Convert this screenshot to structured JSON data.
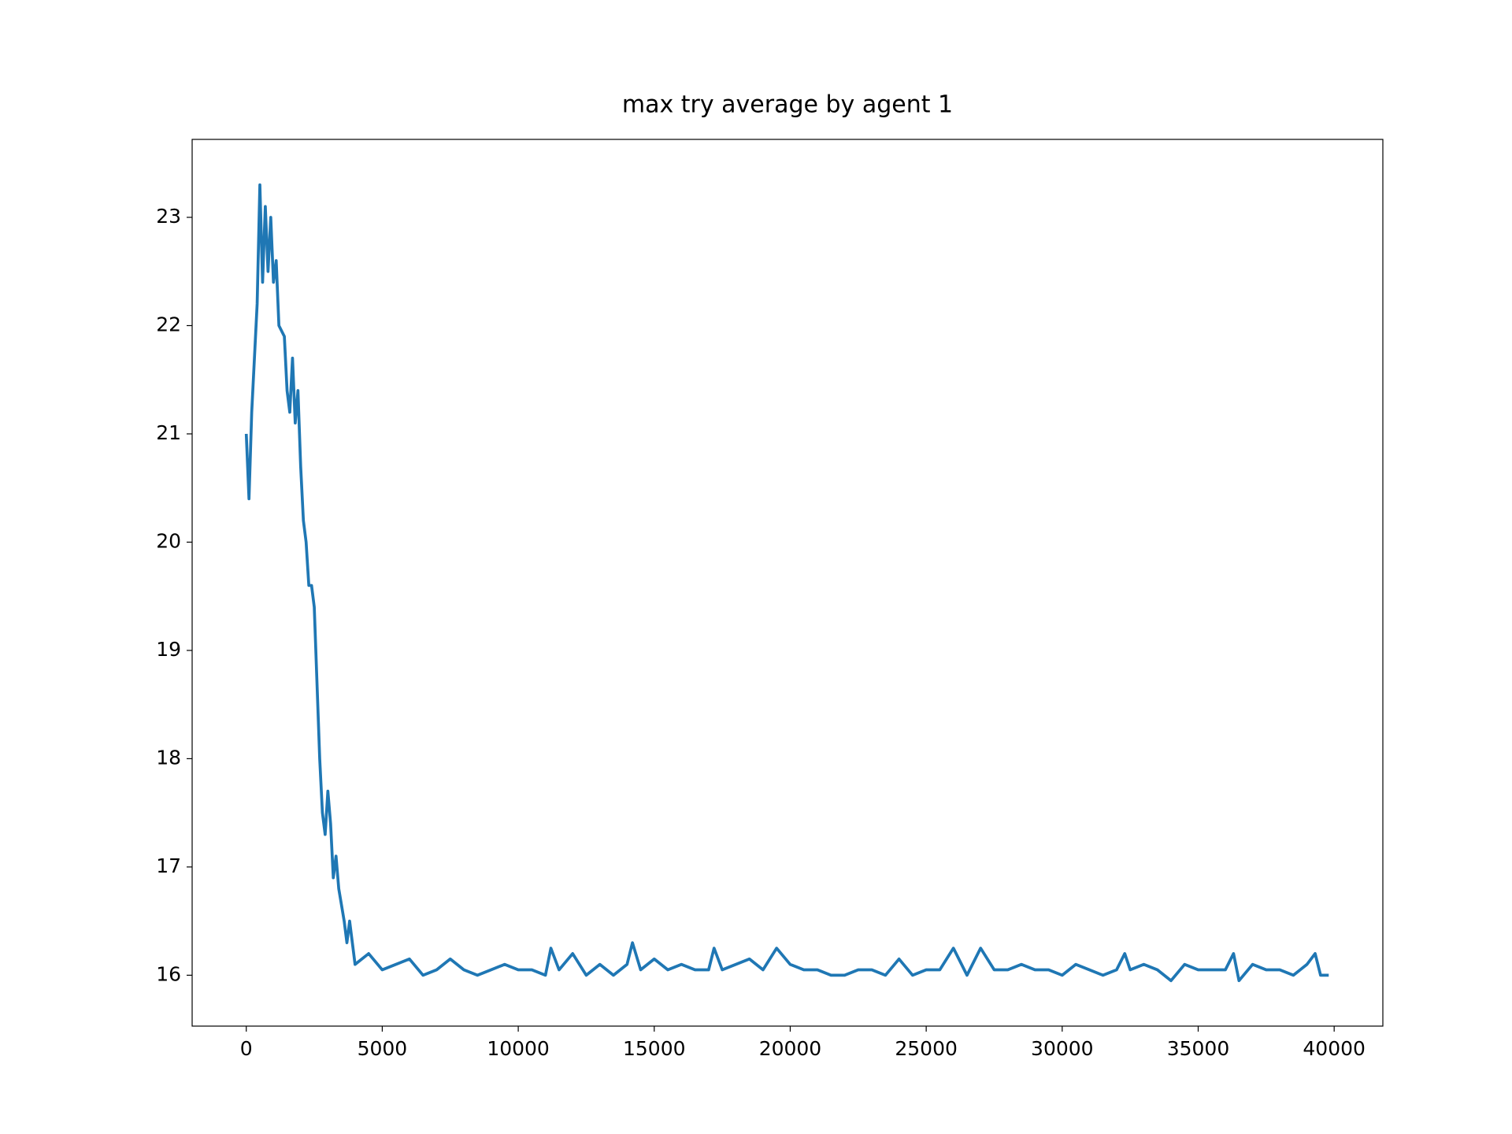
{
  "chart_data": {
    "type": "line",
    "title": "max try average by agent 1",
    "x": [
      0,
      100,
      200,
      300,
      400,
      500,
      600,
      700,
      800,
      900,
      1000,
      1100,
      1200,
      1400,
      1500,
      1600,
      1700,
      1800,
      1900,
      2000,
      2100,
      2200,
      2300,
      2400,
      2500,
      2600,
      2700,
      2800,
      2900,
      3000,
      3100,
      3200,
      3300,
      3400,
      3600,
      3700,
      3800,
      3900,
      4000,
      4500,
      5000,
      5500,
      6000,
      6500,
      7000,
      7500,
      8000,
      8500,
      9000,
      9500,
      10000,
      10500,
      11000,
      11200,
      11500,
      12000,
      12500,
      13000,
      13500,
      14000,
      14200,
      14500,
      15000,
      15500,
      16000,
      16500,
      17000,
      17200,
      17500,
      18000,
      18500,
      19000,
      19500,
      20000,
      20500,
      21000,
      21500,
      22000,
      22500,
      23000,
      23500,
      24000,
      24500,
      25000,
      25500,
      26000,
      26500,
      27000,
      27500,
      28000,
      28500,
      29000,
      29500,
      30000,
      30500,
      31000,
      31500,
      32000,
      32300,
      32500,
      33000,
      33500,
      34000,
      34500,
      35000,
      35500,
      36000,
      36300,
      36500,
      37000,
      37500,
      38000,
      38500,
      39000,
      39300,
      39500,
      39800
    ],
    "series": [
      {
        "name": "max try average",
        "color": "#1f77b4",
        "values": [
          21.0,
          20.4,
          21.2,
          21.7,
          22.2,
          23.3,
          22.4,
          23.1,
          22.5,
          23.0,
          22.4,
          22.6,
          22.0,
          21.9,
          21.4,
          21.2,
          21.7,
          21.1,
          21.4,
          20.7,
          20.2,
          20.0,
          19.6,
          19.6,
          19.4,
          18.7,
          18.0,
          17.5,
          17.3,
          17.7,
          17.4,
          16.9,
          17.1,
          16.8,
          16.5,
          16.3,
          16.5,
          16.3,
          16.1,
          16.2,
          16.05,
          16.1,
          16.15,
          16.0,
          16.05,
          16.15,
          16.05,
          16.0,
          16.05,
          16.1,
          16.05,
          16.05,
          16.0,
          16.25,
          16.05,
          16.2,
          16.0,
          16.1,
          16.0,
          16.1,
          16.3,
          16.05,
          16.15,
          16.05,
          16.1,
          16.05,
          16.05,
          16.25,
          16.05,
          16.1,
          16.15,
          16.05,
          16.25,
          16.1,
          16.05,
          16.05,
          16.0,
          16.0,
          16.05,
          16.05,
          16.0,
          16.15,
          16.0,
          16.05,
          16.05,
          16.25,
          16.0,
          16.25,
          16.05,
          16.05,
          16.1,
          16.05,
          16.05,
          16.0,
          16.1,
          16.05,
          16.0,
          16.05,
          16.2,
          16.05,
          16.1,
          16.05,
          15.95,
          16.1,
          16.05,
          16.05,
          16.05,
          16.2,
          15.95,
          16.1,
          16.05,
          16.05,
          16.0,
          16.1,
          16.2,
          16.0,
          16.0
        ]
      }
    ],
    "xlim": [
      -1990,
      41790
    ],
    "ylim": [
      15.53,
      23.72
    ],
    "xticks": [
      0,
      5000,
      10000,
      15000,
      20000,
      25000,
      30000,
      35000,
      40000
    ],
    "yticks": [
      16,
      17,
      18,
      19,
      20,
      21,
      22,
      23
    ]
  }
}
